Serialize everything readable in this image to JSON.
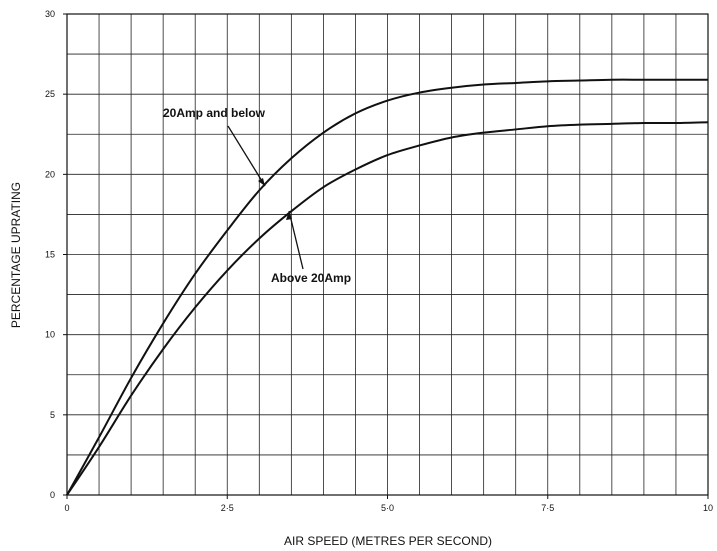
{
  "chart_data": {
    "type": "line",
    "title": "",
    "xlabel": "AIR SPEED (METRES PER SECOND)",
    "ylabel": "PERCENTAGE UPRATING",
    "xlim": [
      0,
      10
    ],
    "ylim": [
      0,
      30
    ],
    "x_ticks": [
      0,
      2.5,
      5,
      7.5,
      10
    ],
    "x_tick_labels": [
      "0",
      "2·5",
      "5·0",
      "7·5",
      "10"
    ],
    "y_ticks": [
      0,
      5,
      10,
      15,
      20,
      25,
      30
    ],
    "y_tick_labels": [
      "0",
      "5",
      "10",
      "15",
      "20",
      "25",
      "30"
    ],
    "grid": true,
    "line_color": "#111111",
    "series": [
      {
        "name": "20Amp and below",
        "x": [
          0,
          0.5,
          1.0,
          1.5,
          2.0,
          2.5,
          3.0,
          3.5,
          4.0,
          4.5,
          5.0,
          5.5,
          6.0,
          6.5,
          7.0,
          7.5,
          8.0,
          8.5,
          9.0,
          9.5,
          10.0
        ],
        "y": [
          0,
          3.6,
          7.3,
          10.7,
          13.8,
          16.5,
          19.0,
          21.0,
          22.6,
          23.8,
          24.6,
          25.1,
          25.4,
          25.6,
          25.7,
          25.8,
          25.85,
          25.9,
          25.9,
          25.9,
          25.9
        ]
      },
      {
        "name": "Above 20Amp",
        "x": [
          0,
          0.5,
          1.0,
          1.5,
          2.0,
          2.5,
          3.0,
          3.5,
          4.0,
          4.5,
          5.0,
          5.5,
          6.0,
          6.5,
          7.0,
          7.5,
          8.0,
          8.5,
          9.0,
          9.5,
          10.0
        ],
        "y": [
          0,
          3.0,
          6.2,
          9.1,
          11.7,
          14.0,
          16.0,
          17.7,
          19.2,
          20.3,
          21.2,
          21.8,
          22.3,
          22.6,
          22.8,
          23.0,
          23.1,
          23.15,
          23.2,
          23.2,
          23.25
        ]
      }
    ],
    "annotations": [
      {
        "text": "20Amp and below",
        "target_series": 0
      },
      {
        "text": "Above 20Amp",
        "target_series": 1
      }
    ]
  }
}
